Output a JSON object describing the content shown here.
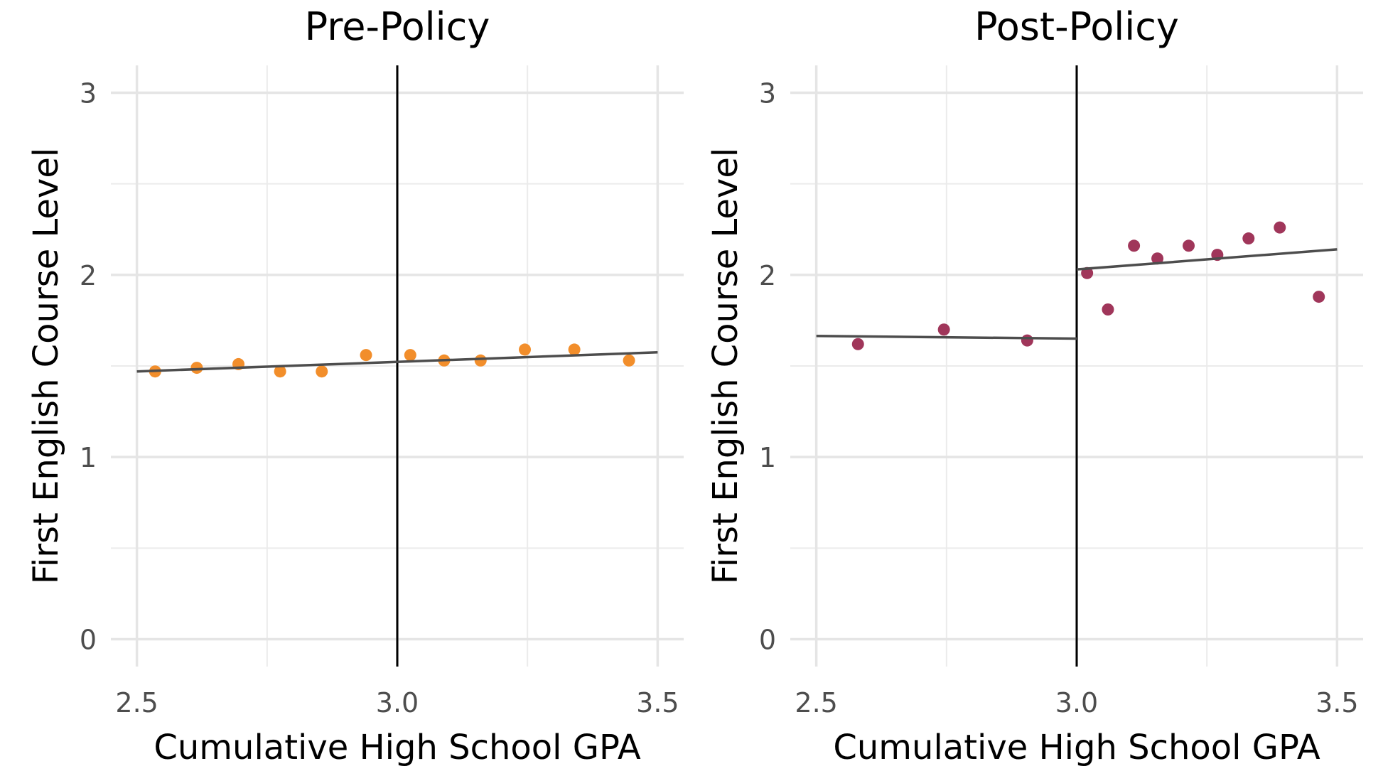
{
  "chart_data": [
    {
      "type": "scatter",
      "title": "Pre-Policy",
      "xlabel": "Cumulative High School GPA",
      "ylabel": "First English Course Level",
      "xlim": [
        2.45,
        3.55
      ],
      "ylim": [
        -0.15,
        3.15
      ],
      "xticks": [
        2.5,
        3.0,
        3.5
      ],
      "xtick_labels": [
        "2.5",
        "3.0",
        "3.5"
      ],
      "yticks": [
        0,
        1,
        2,
        3
      ],
      "ytick_labels": [
        "0",
        "1",
        "2",
        "3"
      ],
      "grid": true,
      "cutoff": 3.0,
      "point_color": "#F28E2B",
      "points": [
        {
          "x": 2.535,
          "y": 1.47
        },
        {
          "x": 2.615,
          "y": 1.49
        },
        {
          "x": 2.695,
          "y": 1.51
        },
        {
          "x": 2.775,
          "y": 1.47
        },
        {
          "x": 2.855,
          "y": 1.47
        },
        {
          "x": 2.94,
          "y": 1.56
        },
        {
          "x": 3.025,
          "y": 1.56
        },
        {
          "x": 3.09,
          "y": 1.53
        },
        {
          "x": 3.16,
          "y": 1.53
        },
        {
          "x": 3.245,
          "y": 1.59
        },
        {
          "x": 3.34,
          "y": 1.59
        },
        {
          "x": 3.445,
          "y": 1.53
        }
      ],
      "fit_lines": [
        {
          "x": [
            2.5,
            3.5
          ],
          "y": [
            1.47,
            1.575
          ]
        }
      ]
    },
    {
      "type": "scatter",
      "title": "Post-Policy",
      "xlabel": "Cumulative High School GPA",
      "ylabel": "First English Course Level",
      "xlim": [
        2.45,
        3.55
      ],
      "ylim": [
        -0.15,
        3.15
      ],
      "xticks": [
        2.5,
        3.0,
        3.5
      ],
      "xtick_labels": [
        "2.5",
        "3.0",
        "3.5"
      ],
      "yticks": [
        0,
        1,
        2,
        3
      ],
      "ytick_labels": [
        "0",
        "1",
        "2",
        "3"
      ],
      "grid": true,
      "cutoff": 3.0,
      "point_color": "#A0365A",
      "points": [
        {
          "x": 2.58,
          "y": 1.62
        },
        {
          "x": 2.745,
          "y": 1.7
        },
        {
          "x": 2.905,
          "y": 1.64
        },
        {
          "x": 3.02,
          "y": 2.01
        },
        {
          "x": 3.06,
          "y": 1.81
        },
        {
          "x": 3.11,
          "y": 2.16
        },
        {
          "x": 3.155,
          "y": 2.09
        },
        {
          "x": 3.215,
          "y": 2.16
        },
        {
          "x": 3.27,
          "y": 2.11
        },
        {
          "x": 3.33,
          "y": 2.2
        },
        {
          "x": 3.39,
          "y": 2.26
        },
        {
          "x": 3.465,
          "y": 1.88
        }
      ],
      "fit_lines": [
        {
          "x": [
            2.5,
            3.0
          ],
          "y": [
            1.665,
            1.65
          ]
        },
        {
          "x": [
            3.0,
            3.5
          ],
          "y": [
            2.03,
            2.14
          ]
        }
      ]
    }
  ]
}
